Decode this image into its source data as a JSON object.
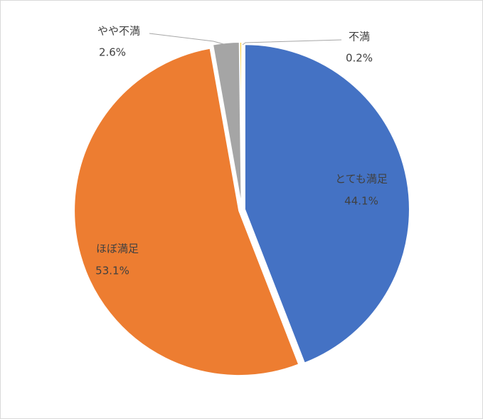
{
  "chart_data": {
    "type": "pie",
    "categories": [
      "とても満足",
      "ほぼ満足",
      "やや不満",
      "不満"
    ],
    "values": [
      44.1,
      53.1,
      2.6,
      0.2
    ],
    "value_labels": [
      "44.1%",
      "53.1%",
      "2.6%",
      "0.2%"
    ],
    "colors": [
      "#4472c4",
      "#ed7d31",
      "#a5a5a5",
      "#ffc000"
    ]
  }
}
